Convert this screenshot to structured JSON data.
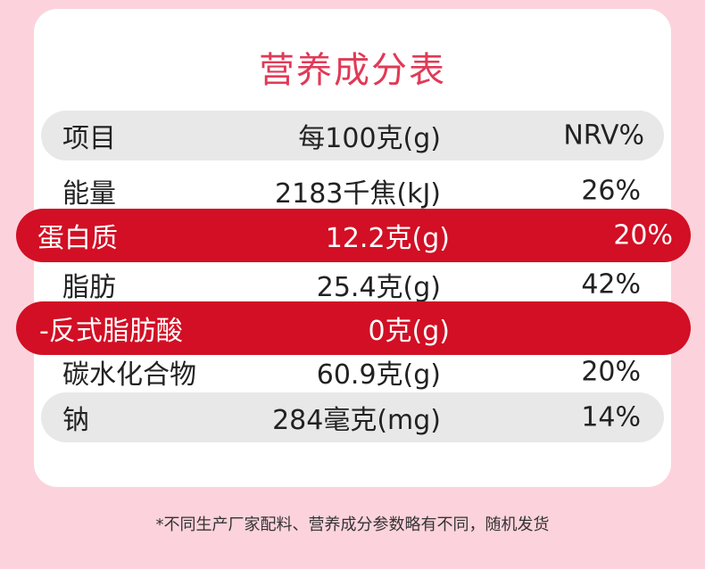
{
  "title": "营养成分表",
  "header": {
    "item": "项目",
    "per100": "每100克(g)",
    "nrv": "NRV%"
  },
  "rows": [
    {
      "name": "能量",
      "value": "2183千焦(kJ)",
      "nrv": "26%"
    },
    {
      "name": "蛋白质",
      "value": "12.2克(g)",
      "nrv": "20%"
    },
    {
      "name": "脂肪",
      "value": "25.4克(g)",
      "nrv": "42%"
    },
    {
      "name": "-反式脂肪酸",
      "value": "0克(g)",
      "nrv": ""
    },
    {
      "name": "碳水化合物",
      "value": "60.9克(g)",
      "nrv": "20%"
    },
    {
      "name": "钠",
      "value": "284毫克(mg)",
      "nrv": "14%"
    }
  ],
  "footnote": "*不同生产厂家配料、营养成分参数略有不同，随机发货",
  "colors": {
    "background": "#fcd3dc",
    "title": "#e03a57",
    "highlight": "#d20f24",
    "header_bg": "#e8e8e8"
  }
}
